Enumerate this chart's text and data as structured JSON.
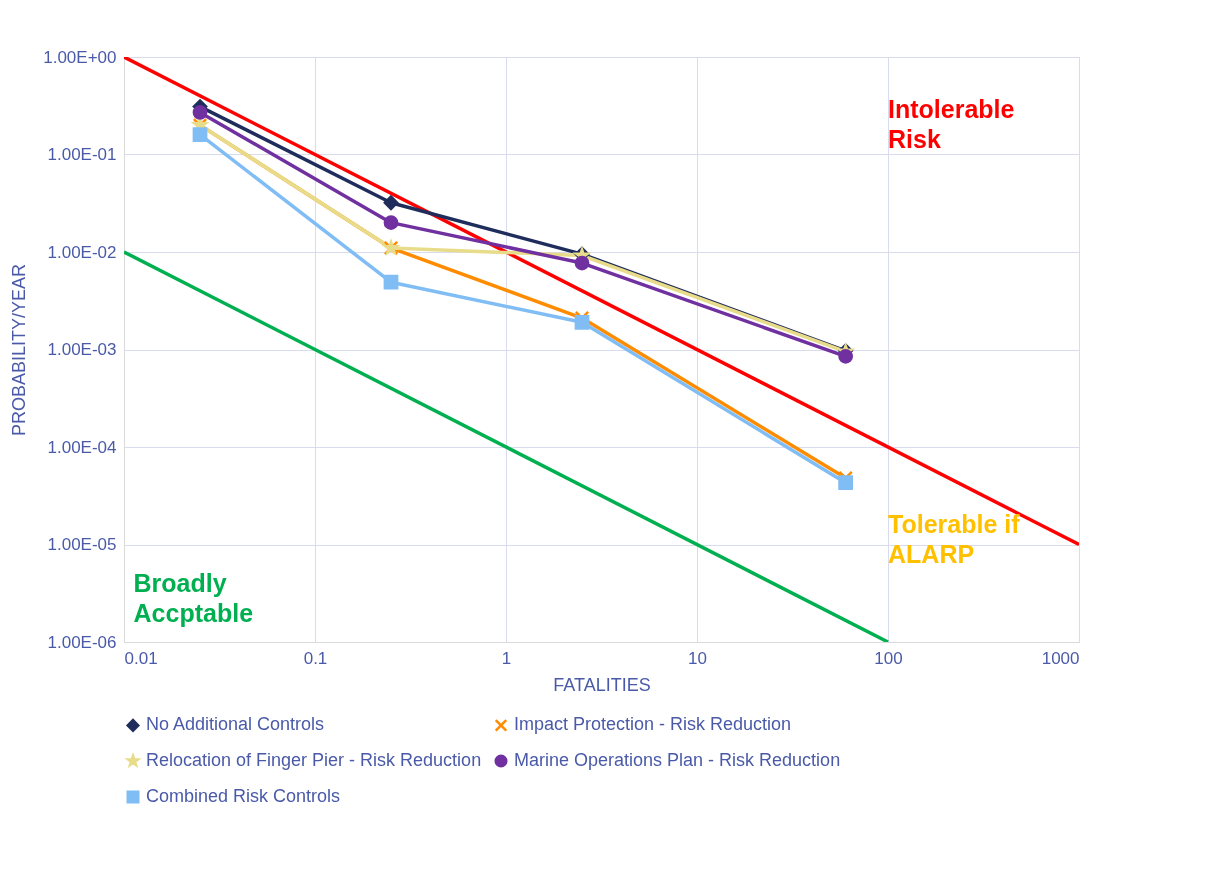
{
  "chart_data": {
    "type": "line",
    "xlabel": "FATALITIES",
    "ylabel": "PROBABILITY/YEAR",
    "log": "xy",
    "grid": true,
    "legend": "bottom",
    "xlim": [
      0.01,
      1000
    ],
    "xticks": [
      0.01,
      0.1,
      1,
      10,
      100,
      1000
    ],
    "ylim": [
      1e-06,
      1
    ],
    "yticks": [
      {
        "value": 1,
        "label": "1.00E+00"
      },
      {
        "value": 0.1,
        "label": "1.00E-01"
      },
      {
        "value": 0.01,
        "label": "1.00E-02"
      },
      {
        "value": 0.001,
        "label": "1.00E-03"
      },
      {
        "value": 0.0001,
        "label": "1.00E-04"
      },
      {
        "value": 1e-05,
        "label": "1.00E-05"
      },
      {
        "value": 1e-06,
        "label": "1.00E-06"
      }
    ],
    "x": [
      0.025,
      0.25,
      2.5,
      60
    ],
    "series": [
      {
        "name": "No Additional Controls",
        "color": "#1f2d5c",
        "marker": "diamond",
        "values": [
          0.31,
          0.032,
          0.0095,
          0.00097
        ]
      },
      {
        "name": "Impact Protection - Risk Reduction",
        "color": "#ff8c00",
        "marker": "cross",
        "values": [
          0.2,
          0.011,
          0.0021,
          4.8e-05
        ]
      },
      {
        "name": "Relocation of Finger Pier - Risk Reduction",
        "color": "#e8dc8a",
        "marker": "star",
        "values": [
          0.2,
          0.011,
          0.0092,
          0.00095
        ]
      },
      {
        "name": "Marine Operations Plan - Risk Reduction",
        "color": "#7030a0",
        "marker": "circle",
        "values": [
          0.27,
          0.02,
          0.0077,
          0.00085
        ]
      },
      {
        "name": "Combined Risk Controls",
        "color": "#80bdf5",
        "marker": "square",
        "values": [
          0.16,
          0.0049,
          0.0019,
          4.3e-05
        ]
      },
      {
        "color": "#ff0000",
        "x": [
          0.01,
          1000
        ],
        "values": [
          1,
          1e-05
        ]
      },
      {
        "color": "#00b050",
        "x": [
          0.01,
          100
        ],
        "values": [
          0.01,
          1e-06
        ]
      }
    ],
    "annotations": [
      "Intolerable\nRisk",
      "Tolerable if\nALARP",
      "Broadly\nAccptable"
    ]
  }
}
